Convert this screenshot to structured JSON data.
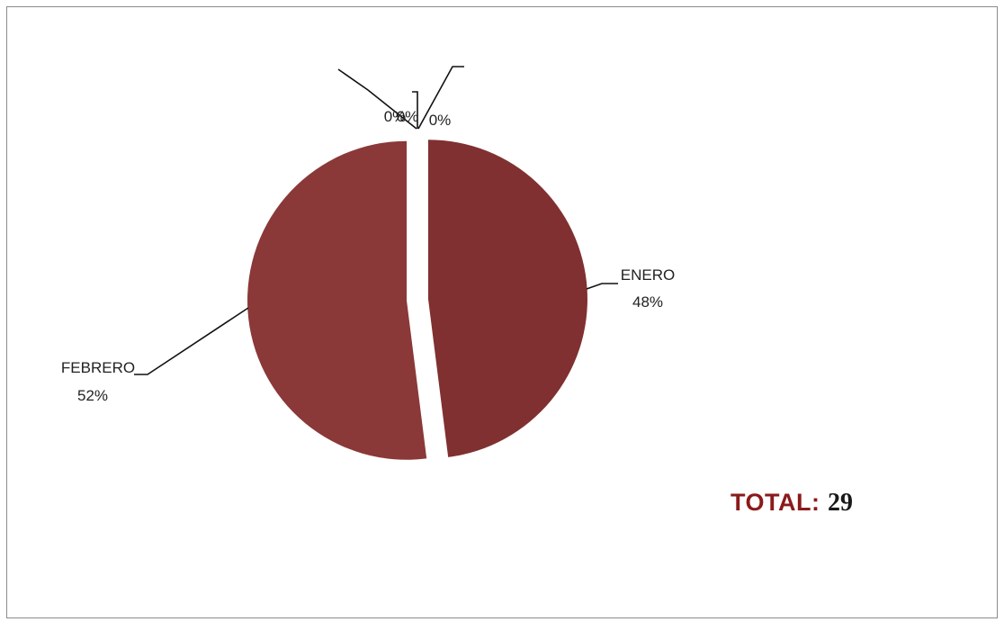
{
  "chart_data": {
    "type": "pie",
    "slices": [
      {
        "label": "ENERO",
        "value": 48,
        "display": "48%",
        "color": "#803030"
      },
      {
        "label": "FEBRERO",
        "value": 52,
        "display": "52%",
        "color": "#8b3838"
      },
      {
        "label": "",
        "value": 0,
        "display": "0%",
        "color": "#8b3838"
      },
      {
        "label": "",
        "value": 0,
        "display": "0%",
        "color": "#8b3838"
      },
      {
        "label": "",
        "value": 0,
        "display": "0%",
        "color": "#8b3838"
      }
    ]
  },
  "total": {
    "label": "TOTAL:",
    "value": "29"
  }
}
